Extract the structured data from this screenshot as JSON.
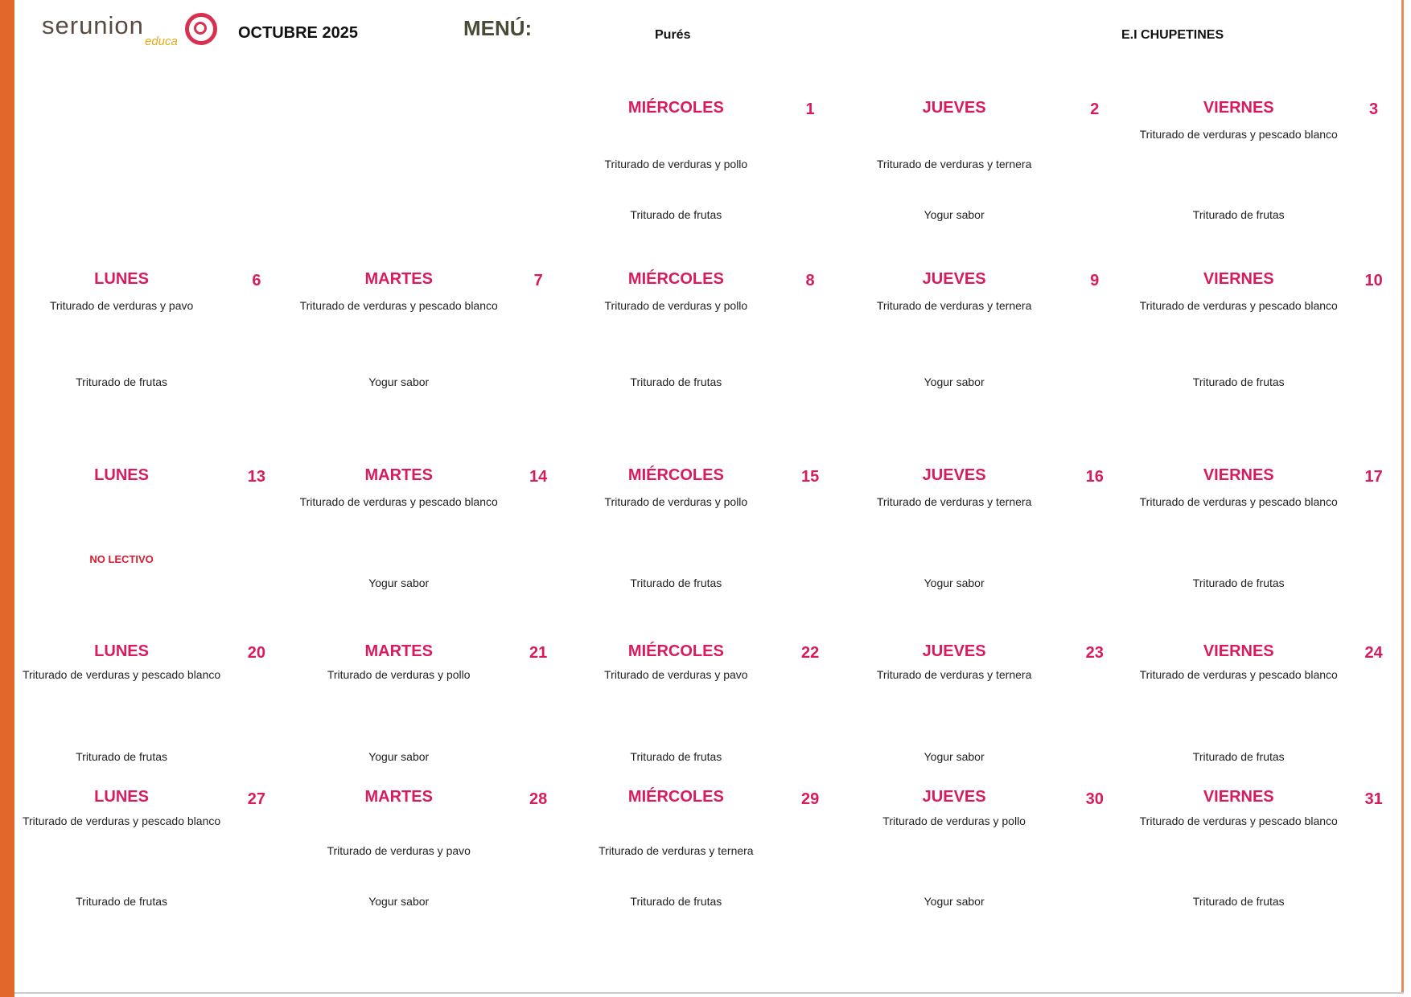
{
  "header": {
    "brand": "serunion",
    "brand_sub": "educa",
    "month": "OCTUBRE 2025",
    "menu_label": "MENÚ:",
    "menu_type": "Purés",
    "school": "E.I CHUPETINES"
  },
  "colors": {
    "accent": "#d81b60",
    "border": "#e2672a"
  },
  "weeks": [
    [
      null,
      null,
      {
        "day": "MIÉRCOLES",
        "date": "1",
        "main": "Triturado de verduras y pollo",
        "dessert": "Triturado de frutas"
      },
      {
        "day": "JUEVES",
        "date": "2",
        "main": "Triturado de verduras y ternera",
        "dessert": "Yogur sabor"
      },
      {
        "day": "VIERNES",
        "date": "3",
        "main": "Triturado de verduras y pescado blanco",
        "dessert": "Triturado de frutas"
      }
    ],
    [
      {
        "day": "LUNES",
        "date": "6",
        "main": "Triturado de verduras y pavo",
        "dessert": "Triturado de frutas"
      },
      {
        "day": "MARTES",
        "date": "7",
        "main": "Triturado de verduras y pescado blanco",
        "dessert": "Yogur sabor"
      },
      {
        "day": "MIÉRCOLES",
        "date": "8",
        "main": "Triturado de verduras y pollo",
        "dessert": "Triturado de frutas"
      },
      {
        "day": "JUEVES",
        "date": "9",
        "main": "Triturado de verduras y ternera",
        "dessert": "Yogur sabor"
      },
      {
        "day": "VIERNES",
        "date": "10",
        "main": "Triturado de verduras y pescado blanco",
        "dessert": "Triturado de frutas"
      }
    ],
    [
      {
        "day": "LUNES",
        "date": "13",
        "note": "NO LECTIVO"
      },
      {
        "day": "MARTES",
        "date": "14",
        "main": "Triturado de verduras y pescado blanco",
        "dessert": "Yogur sabor"
      },
      {
        "day": "MIÉRCOLES",
        "date": "15",
        "main": "Triturado de verduras y pollo",
        "dessert": "Triturado de frutas"
      },
      {
        "day": "JUEVES",
        "date": "16",
        "main": "Triturado de verduras y ternera",
        "dessert": "Yogur sabor"
      },
      {
        "day": "VIERNES",
        "date": "17",
        "main": "Triturado de verduras y pescado blanco",
        "dessert": "Triturado de frutas"
      }
    ],
    [
      {
        "day": "LUNES",
        "date": "20",
        "main": "Triturado de verduras y pescado blanco",
        "dessert": "Triturado de frutas"
      },
      {
        "day": "MARTES",
        "date": "21",
        "main": "Triturado de verduras y pollo",
        "dessert": "Yogur sabor"
      },
      {
        "day": "MIÉRCOLES",
        "date": "22",
        "main": "Triturado de verduras y pavo",
        "dessert": "Triturado de frutas"
      },
      {
        "day": "JUEVES",
        "date": "23",
        "main": "Triturado de verduras y ternera",
        "dessert": "Yogur sabor"
      },
      {
        "day": "VIERNES",
        "date": "24",
        "main": "Triturado de verduras y pescado blanco",
        "dessert": "Triturado de frutas"
      }
    ],
    [
      {
        "day": "LUNES",
        "date": "27",
        "main": "Triturado de verduras y pescado blanco",
        "dessert": "Triturado de frutas"
      },
      {
        "day": "MARTES",
        "date": "28",
        "main": "Triturado de verduras y pavo",
        "dessert": "Yogur sabor"
      },
      {
        "day": "MIÉRCOLES",
        "date": "29",
        "main": "Triturado de verduras y ternera",
        "dessert": "Triturado de frutas"
      },
      {
        "day": "JUEVES",
        "date": "30",
        "main": "Triturado de verduras y pollo",
        "dessert": "Yogur sabor"
      },
      {
        "day": "VIERNES",
        "date": "31",
        "main": "Triturado de verduras y pescado blanco",
        "dessert": "Triturado de frutas"
      }
    ]
  ]
}
